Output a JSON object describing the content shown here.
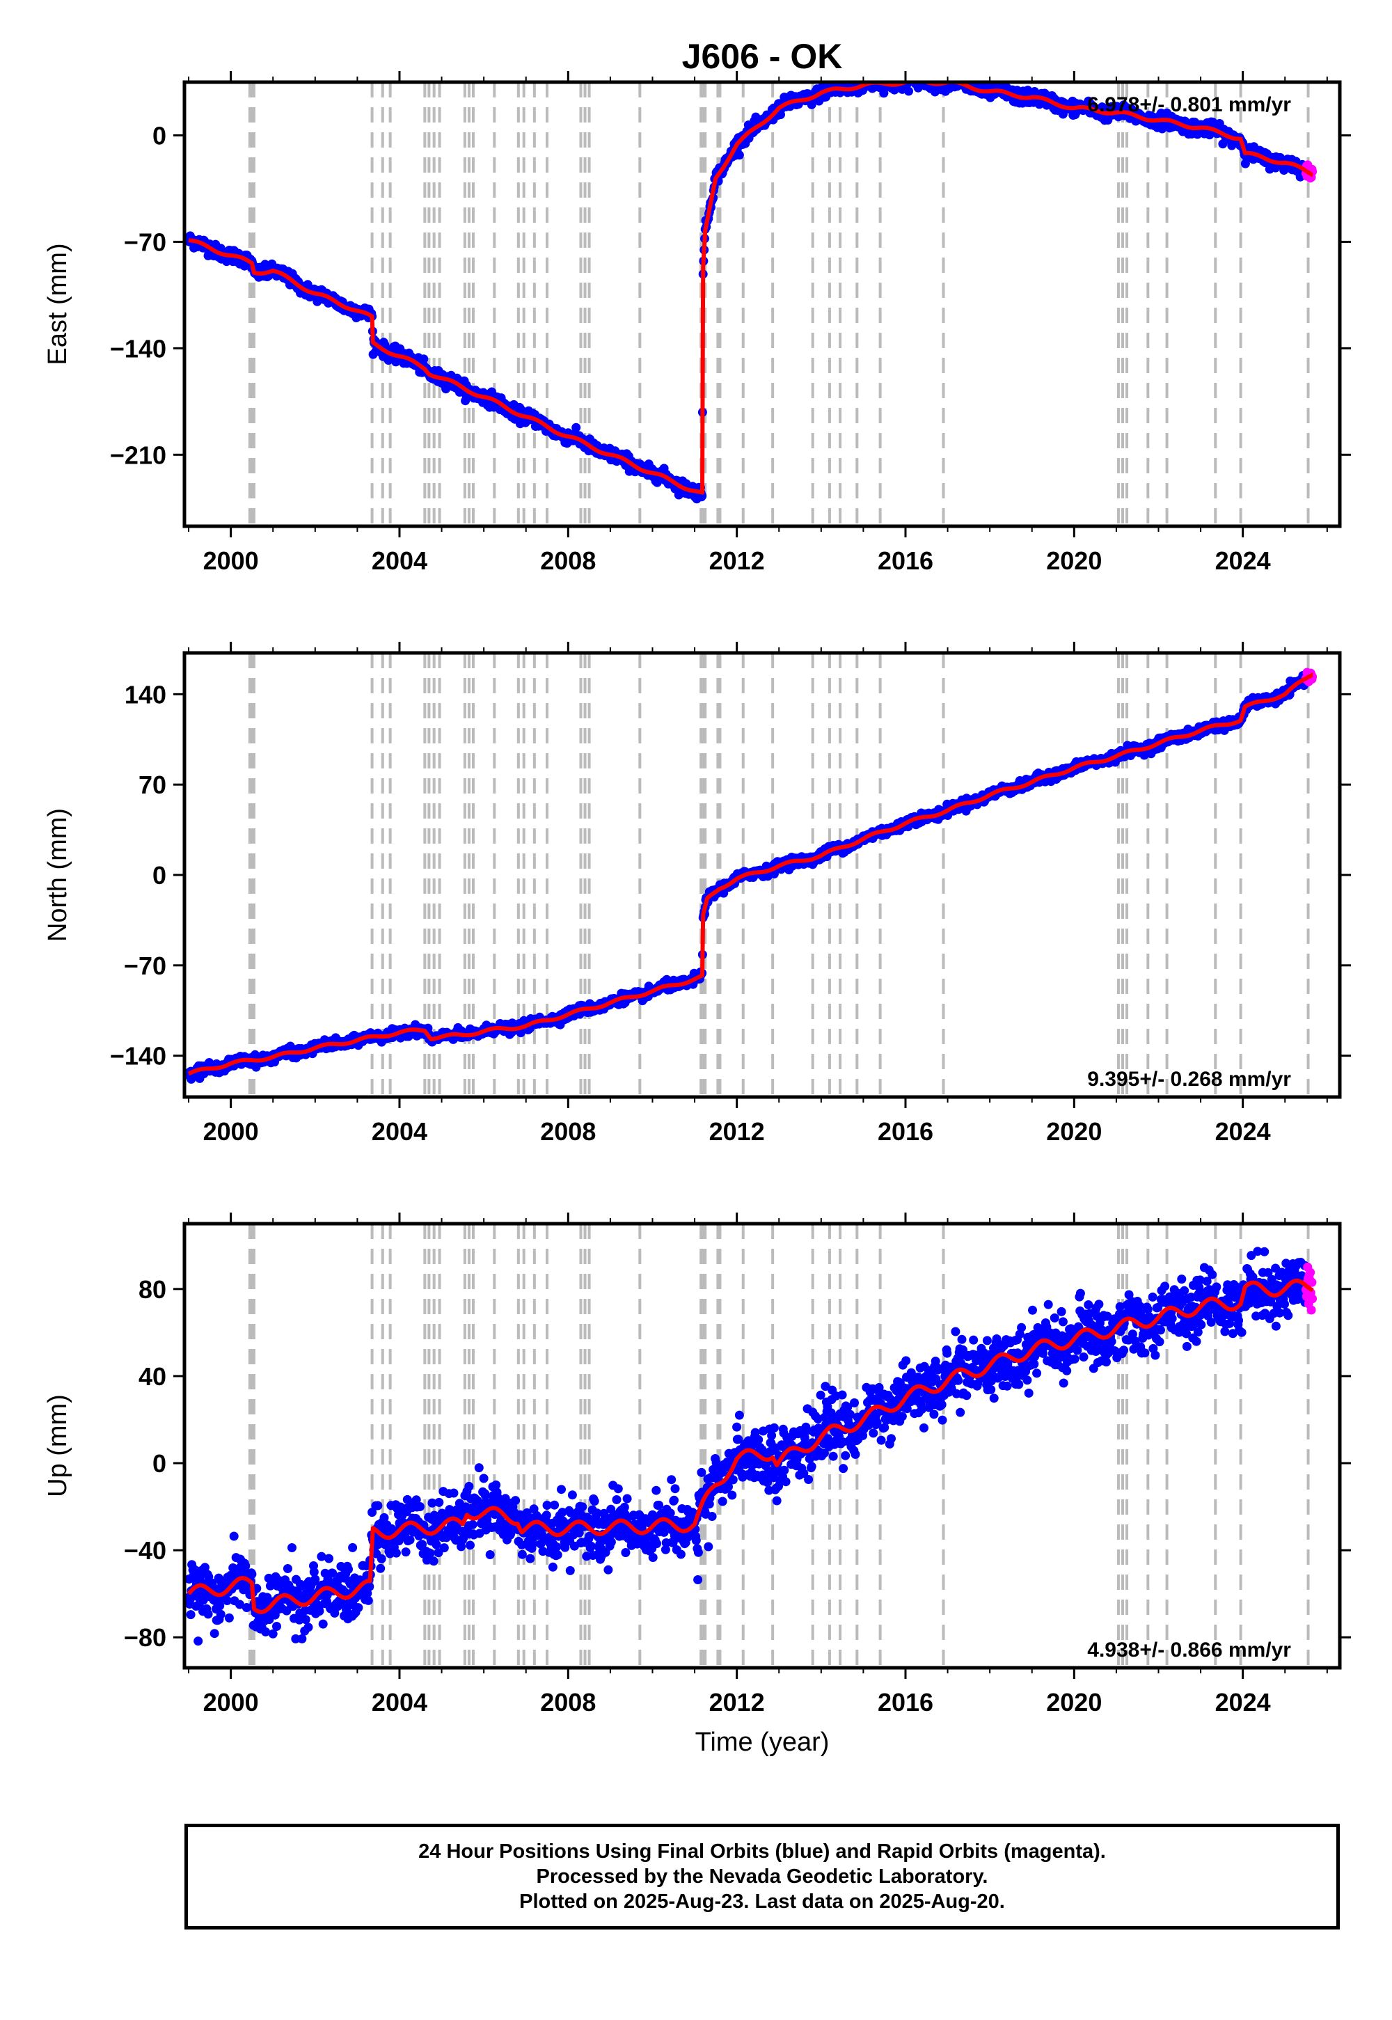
{
  "title": "J606 - OK",
  "xlabel": "Time (year)",
  "colors": {
    "final": "#0000ff",
    "rapid": "#ff00ff",
    "model": "#ff0000",
    "event": "#bbbbbb"
  },
  "event_lines": [
    2000.45,
    2000.5,
    2000.55,
    2003.35,
    2003.6,
    2003.78,
    2004.6,
    2004.7,
    2004.82,
    2004.95,
    2005.55,
    2005.65,
    2005.75,
    2006.25,
    2006.82,
    2006.95,
    2007.2,
    2007.5,
    2008.3,
    2008.4,
    2008.5,
    2009.7,
    2011.15,
    2011.2,
    2011.25,
    2011.55,
    2011.6,
    2012.15,
    2012.85,
    2013.8,
    2014.2,
    2014.45,
    2014.85,
    2015.4,
    2016.9,
    2021.05,
    2021.15,
    2021.25,
    2021.75,
    2022.2,
    2023.35,
    2023.95,
    2025.55
  ],
  "chart_data": [
    {
      "type": "scatter",
      "component": "east",
      "ylabel": "East (mm)",
      "rate": "6.978+/- 0.801 mm/yr",
      "rate_position": "top-right",
      "xlim": [
        1998.9,
        2026.3
      ],
      "ylim": [
        -257,
        35
      ],
      "xticks": [
        2000,
        2004,
        2008,
        2012,
        2016,
        2020,
        2024
      ],
      "yticks": [
        -210,
        -140,
        -70,
        0
      ],
      "ytick_labels": [
        "−210",
        "−140",
        "−70",
        "0"
      ],
      "scatter_sd": 2.2,
      "rapid_from": 2025.5,
      "model": [
        [
          1999.0,
          -69
        ],
        [
          2000.5,
          -84
        ],
        [
          2000.55,
          -90
        ],
        [
          2001.0,
          -89
        ],
        [
          2002.0,
          -104
        ],
        [
          2002.9,
          -114
        ],
        [
          2003.35,
          -120
        ],
        [
          2003.37,
          -137
        ],
        [
          2004.6,
          -153
        ],
        [
          2004.7,
          -156
        ],
        [
          2006.0,
          -172
        ],
        [
          2008.0,
          -198
        ],
        [
          2010.0,
          -222
        ],
        [
          2011.18,
          -236
        ],
        [
          2011.2,
          -88
        ],
        [
          2011.25,
          -64
        ],
        [
          2011.5,
          -28
        ],
        [
          2012.0,
          -6
        ],
        [
          2013.0,
          18
        ],
        [
          2014.0,
          28
        ],
        [
          2015.0,
          33
        ],
        [
          2016.0,
          35
        ],
        [
          2017.0,
          35
        ],
        [
          2018.0,
          29
        ],
        [
          2019.0,
          25
        ],
        [
          2020.0,
          18
        ],
        [
          2021.0,
          15
        ],
        [
          2022.0,
          10
        ],
        [
          2023.0,
          5
        ],
        [
          2023.95,
          -2
        ],
        [
          2024.05,
          -12
        ],
        [
          2025.0,
          -18
        ],
        [
          2025.65,
          -25
        ]
      ]
    },
    {
      "type": "scatter",
      "component": "north",
      "ylabel": "North (mm)",
      "rate": "9.395+/- 0.268 mm/yr",
      "rate_position": "bottom-right",
      "xlim": [
        1998.9,
        2026.3
      ],
      "ylim": [
        -172,
        172
      ],
      "xticks": [
        2000,
        2004,
        2008,
        2012,
        2016,
        2020,
        2024
      ],
      "yticks": [
        -140,
        -70,
        0,
        70,
        140
      ],
      "ytick_labels": [
        "−140",
        "−70",
        "0",
        "70",
        "140"
      ],
      "scatter_sd": 1.8,
      "rapid_from": 2025.5,
      "model": [
        [
          1999.0,
          -154
        ],
        [
          2000.0,
          -146
        ],
        [
          2001.0,
          -141
        ],
        [
          2002.0,
          -134
        ],
        [
          2003.0,
          -128
        ],
        [
          2004.0,
          -122
        ],
        [
          2004.6,
          -120
        ],
        [
          2004.75,
          -126
        ],
        [
          2005.5,
          -124
        ],
        [
          2006.0,
          -121
        ],
        [
          2007.0,
          -117
        ],
        [
          2008.0,
          -108
        ],
        [
          2009.0,
          -99
        ],
        [
          2010.0,
          -90
        ],
        [
          2011.18,
          -79
        ],
        [
          2011.2,
          -32
        ],
        [
          2011.3,
          -19
        ],
        [
          2011.6,
          -10
        ],
        [
          2012.0,
          -3
        ],
        [
          2013.0,
          7
        ],
        [
          2014.0,
          15
        ],
        [
          2015.0,
          28
        ],
        [
          2016.0,
          40
        ],
        [
          2017.0,
          50
        ],
        [
          2018.0,
          62
        ],
        [
          2019.0,
          72
        ],
        [
          2020.0,
          83
        ],
        [
          2021.0,
          92
        ],
        [
          2022.0,
          102
        ],
        [
          2023.0,
          112
        ],
        [
          2023.95,
          120
        ],
        [
          2024.05,
          130
        ],
        [
          2025.0,
          140
        ],
        [
          2025.65,
          156
        ]
      ]
    },
    {
      "type": "scatter",
      "component": "up",
      "ylabel": "Up (mm)",
      "rate": "4.938+/- 0.866 mm/yr",
      "rate_position": "bottom-right",
      "xlim": [
        1998.9,
        2026.3
      ],
      "ylim": [
        -94,
        110
      ],
      "xticks": [
        2000,
        2004,
        2008,
        2012,
        2016,
        2020,
        2024
      ],
      "xtick_labels_shown": true,
      "yticks": [
        -80,
        -40,
        0,
        40,
        80
      ],
      "ytick_labels": [
        "−80",
        "−40",
        "0",
        "40",
        "80"
      ],
      "scatter_sd": 6.5,
      "rapid_from": 2025.5,
      "model": [
        [
          1999.0,
          -60
        ],
        [
          2000.5,
          -55
        ],
        [
          2000.55,
          -66
        ],
        [
          2003.3,
          -57
        ],
        [
          2003.37,
          -32
        ],
        [
          2005.5,
          -28
        ],
        [
          2005.6,
          -22
        ],
        [
          2006.8,
          -25
        ],
        [
          2006.9,
          -30
        ],
        [
          2008.0,
          -30
        ],
        [
          2010.0,
          -29
        ],
        [
          2011.0,
          -28
        ],
        [
          2011.2,
          -20
        ],
        [
          2011.5,
          -10
        ],
        [
          2012.0,
          2
        ],
        [
          2012.85,
          5
        ],
        [
          2012.95,
          0
        ],
        [
          2014.0,
          12
        ],
        [
          2015.0,
          20
        ],
        [
          2016.0,
          30
        ],
        [
          2017.0,
          38
        ],
        [
          2018.0,
          45
        ],
        [
          2019.0,
          52
        ],
        [
          2020.0,
          57
        ],
        [
          2021.0,
          62
        ],
        [
          2022.0,
          67
        ],
        [
          2023.0,
          72
        ],
        [
          2023.95,
          74
        ],
        [
          2024.05,
          80
        ],
        [
          2025.0,
          80
        ],
        [
          2025.65,
          82
        ]
      ]
    }
  ],
  "footer": {
    "line1": "24 Hour Positions Using Final Orbits (blue) and Rapid Orbits (magenta).",
    "line2": "Processed by the Nevada Geodetic Laboratory.",
    "line3": "Plotted on 2025-Aug-23. Last data on 2025-Aug-20."
  }
}
